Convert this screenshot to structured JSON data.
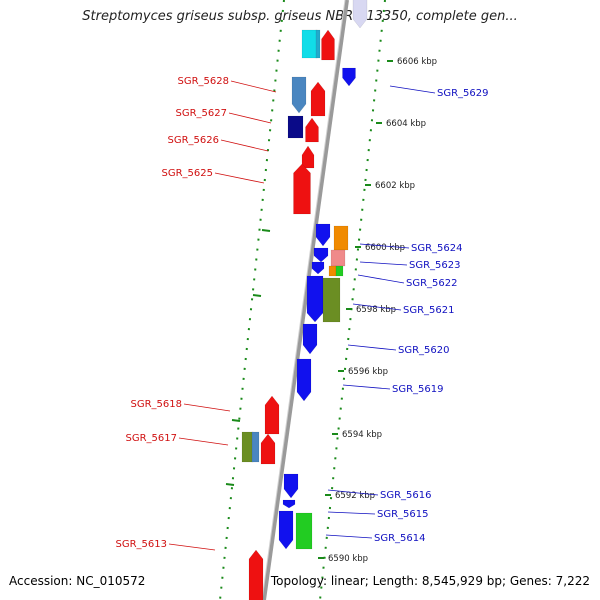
{
  "title": "Streptomyces griseus subsp. griseus NBRC 13350, complete gen...",
  "footer": {
    "accession": "Accession: NC_010572",
    "topology": "Topology: linear; Length: 8,545,929 bp; Genes: 7,222"
  },
  "colors": {
    "left_label": "#d01010",
    "right_label": "#1010c0",
    "axis": "#9a9a9a",
    "dots": "#1a8a1a"
  },
  "kbp_ticks": [
    "6606 kbp",
    "6604 kbp",
    "6602 kbp",
    "6600 kbp",
    "6598 kbp",
    "6596 kbp",
    "6594 kbp",
    "6592 kbp",
    "6590 kbp"
  ],
  "left_labels": [
    "SGR_5628",
    "SGR_5627",
    "SGR_5626",
    "SGR_5625",
    "SGR_5618",
    "SGR_5617",
    "SGR_5613"
  ],
  "right_labels": [
    "SGR_5629",
    "SGR_5624",
    "SGR_5623",
    "SGR_5622",
    "SGR_5621",
    "SGR_5620",
    "SGR_5619",
    "SGR_5616",
    "SGR_5615",
    "SGR_5614"
  ]
}
